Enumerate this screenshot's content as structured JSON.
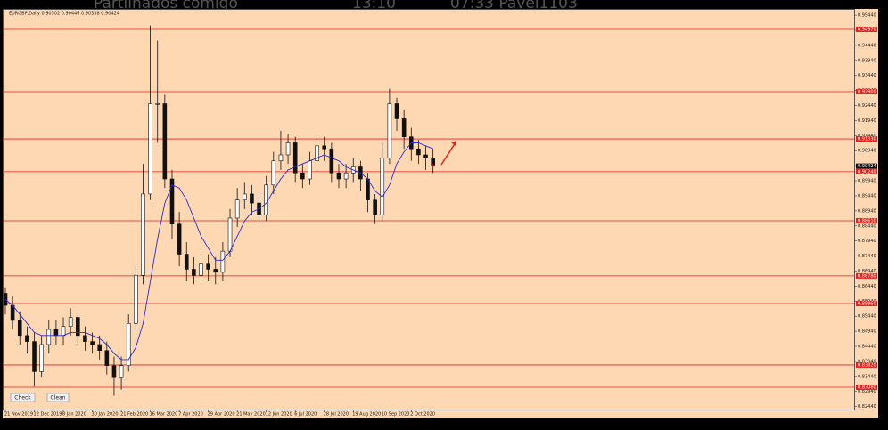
{
  "overlay": [
    "Partilhados comigo",
    "13:10",
    "07:33 Pavel1103"
  ],
  "buttons": [
    "Check",
    "Clean"
  ],
  "chart_data": {
    "type": "candlestick",
    "title": "EURGBP,Daily  0.90302 0.90446 0.90338 0.90424",
    "categories": [
      "21 Nov 2019",
      null,
      null,
      null,
      "12 Dec 2019",
      null,
      null,
      null,
      "8 Jan 2020",
      null,
      null,
      null,
      "30 Jan 2020",
      null,
      null,
      null,
      "21 Feb 2020",
      null,
      null,
      null,
      "16 Mar 2020",
      null,
      null,
      null,
      "7 Apr 2020",
      null,
      null,
      null,
      "29 Apr 2020",
      null,
      null,
      null,
      "21 May 2020",
      null,
      null,
      null,
      "12 Jun 2020",
      null,
      null,
      null,
      "6 Jul 2020",
      null,
      null,
      null,
      "28 Jul 2020",
      null,
      null,
      null,
      "19 Aug 2020",
      null,
      null,
      null,
      "10 Sep 2020",
      null,
      null,
      null,
      "2 Oct 2020",
      null,
      null,
      null
    ],
    "open": [
      0.862,
      0.858,
      0.853,
      0.848,
      0.846,
      0.836,
      0.845,
      0.85,
      0.848,
      0.851,
      0.854,
      0.848,
      0.846,
      0.845,
      0.843,
      0.838,
      0.834,
      0.838,
      0.852,
      0.868,
      0.895,
      0.925,
      0.925,
      0.9,
      0.885,
      0.875,
      0.87,
      0.868,
      0.872,
      0.87,
      0.869,
      0.876,
      0.887,
      0.893,
      0.895,
      0.892,
      0.888,
      0.898,
      0.906,
      0.908,
      0.912,
      0.902,
      0.9,
      0.906,
      0.911,
      0.91,
      0.902,
      0.9,
      0.902,
      0.904,
      0.9,
      0.893,
      0.888,
      0.907,
      0.925,
      0.92,
      0.914,
      0.91,
      0.908,
      0.907
    ],
    "high": [
      0.864,
      0.861,
      0.856,
      0.851,
      0.849,
      0.848,
      0.853,
      0.853,
      0.854,
      0.857,
      0.856,
      0.851,
      0.849,
      0.848,
      0.846,
      0.841,
      0.841,
      0.855,
      0.871,
      0.905,
      0.951,
      0.946,
      0.928,
      0.903,
      0.889,
      0.879,
      0.874,
      0.876,
      0.875,
      0.874,
      0.879,
      0.89,
      0.897,
      0.899,
      0.898,
      0.895,
      0.901,
      0.909,
      0.916,
      0.915,
      0.914,
      0.905,
      0.909,
      0.914,
      0.914,
      0.912,
      0.905,
      0.905,
      0.907,
      0.906,
      0.902,
      0.895,
      0.912,
      0.93,
      0.927,
      0.923,
      0.917,
      0.913,
      0.911,
      0.91
    ],
    "low": [
      0.855,
      0.85,
      0.845,
      0.842,
      0.831,
      0.834,
      0.842,
      0.845,
      0.845,
      0.848,
      0.845,
      0.843,
      0.842,
      0.84,
      0.835,
      0.828,
      0.83,
      0.836,
      0.85,
      0.865,
      0.893,
      0.912,
      0.897,
      0.88,
      0.871,
      0.866,
      0.865,
      0.865,
      0.866,
      0.865,
      0.866,
      0.874,
      0.884,
      0.89,
      0.888,
      0.885,
      0.886,
      0.895,
      0.903,
      0.905,
      0.899,
      0.897,
      0.898,
      0.903,
      0.906,
      0.899,
      0.897,
      0.897,
      0.899,
      0.896,
      0.889,
      0.885,
      0.886,
      0.905,
      0.916,
      0.91,
      0.906,
      0.905,
      0.903,
      0.902
    ],
    "close": [
      0.858,
      0.853,
      0.848,
      0.846,
      0.836,
      0.845,
      0.85,
      0.848,
      0.851,
      0.854,
      0.848,
      0.846,
      0.845,
      0.843,
      0.838,
      0.834,
      0.838,
      0.852,
      0.868,
      0.895,
      0.925,
      0.925,
      0.9,
      0.885,
      0.875,
      0.87,
      0.868,
      0.872,
      0.87,
      0.869,
      0.876,
      0.887,
      0.893,
      0.895,
      0.892,
      0.888,
      0.898,
      0.906,
      0.908,
      0.912,
      0.902,
      0.9,
      0.906,
      0.911,
      0.91,
      0.902,
      0.9,
      0.902,
      0.904,
      0.9,
      0.893,
      0.888,
      0.907,
      0.925,
      0.92,
      0.914,
      0.91,
      0.908,
      0.907,
      0.90424
    ],
    "ma": {
      "color": "#2b2bd6",
      "values": [
        0.86,
        0.858,
        0.855,
        0.852,
        0.849,
        0.848,
        0.848,
        0.848,
        0.848,
        0.849,
        0.849,
        0.849,
        0.848,
        0.847,
        0.845,
        0.842,
        0.84,
        0.84,
        0.844,
        0.852,
        0.866,
        0.88,
        0.892,
        0.898,
        0.897,
        0.893,
        0.887,
        0.881,
        0.877,
        0.873,
        0.873,
        0.876,
        0.881,
        0.886,
        0.889,
        0.89,
        0.892,
        0.896,
        0.9,
        0.903,
        0.904,
        0.905,
        0.906,
        0.907,
        0.908,
        0.907,
        0.906,
        0.904,
        0.903,
        0.902,
        0.9,
        0.896,
        0.894,
        0.898,
        0.905,
        0.909,
        0.912,
        0.912,
        0.911,
        0.91
      ]
    },
    "levels": {
      "color": "#e8211b",
      "values": [
        0.9497,
        0.929,
        0.9133,
        0.9024,
        0.8861,
        0.8678,
        0.8586,
        0.8382,
        0.8308
      ],
      "value_labels": [
        "0.94970",
        "0.92900",
        "0.91330",
        "0.90240",
        "0.88610",
        "0.86780",
        "0.85860",
        "0.83820",
        "0.83080"
      ]
    },
    "last_price": 0.90424,
    "ylim": [
      0.8234,
      0.9565
    ],
    "yticks": [
      {
        "value": 0.9544,
        "label": "0.95440"
      },
      {
        "value": 0.9494,
        "label": "0.94940"
      },
      {
        "value": 0.9444,
        "label": "0.94440"
      },
      {
        "value": 0.9394,
        "label": "0.93940"
      },
      {
        "value": 0.9344,
        "label": "0.93440"
      },
      {
        "value": 0.9294,
        "label": "0.92940"
      },
      {
        "value": 0.9244,
        "label": "0.92440"
      },
      {
        "value": 0.9194,
        "label": "0.91940"
      },
      {
        "value": 0.9144,
        "label": "0.91440"
      },
      {
        "value": 0.9094,
        "label": "0.90940"
      },
      {
        "value": 0.9044,
        "label": "0.90440"
      },
      {
        "value": 0.8994,
        "label": "0.89940"
      },
      {
        "value": 0.8944,
        "label": "0.89440"
      },
      {
        "value": 0.8894,
        "label": "0.88940"
      },
      {
        "value": 0.8844,
        "label": "0.88440"
      },
      {
        "value": 0.8794,
        "label": "0.87940"
      },
      {
        "value": 0.8744,
        "label": "0.87440"
      },
      {
        "value": 0.8694,
        "label": "0.86940"
      },
      {
        "value": 0.8644,
        "label": "0.86440"
      },
      {
        "value": 0.8594,
        "label": "0.85940"
      },
      {
        "value": 0.8544,
        "label": "0.85440"
      },
      {
        "value": 0.8494,
        "label": "0.84940"
      },
      {
        "value": 0.8444,
        "label": "0.84440"
      },
      {
        "value": 0.8394,
        "label": "0.83940"
      },
      {
        "value": 0.8344,
        "label": "0.83440"
      },
      {
        "value": 0.8294,
        "label": "0.82940"
      },
      {
        "value": 0.8244,
        "label": "0.82440"
      }
    ]
  }
}
